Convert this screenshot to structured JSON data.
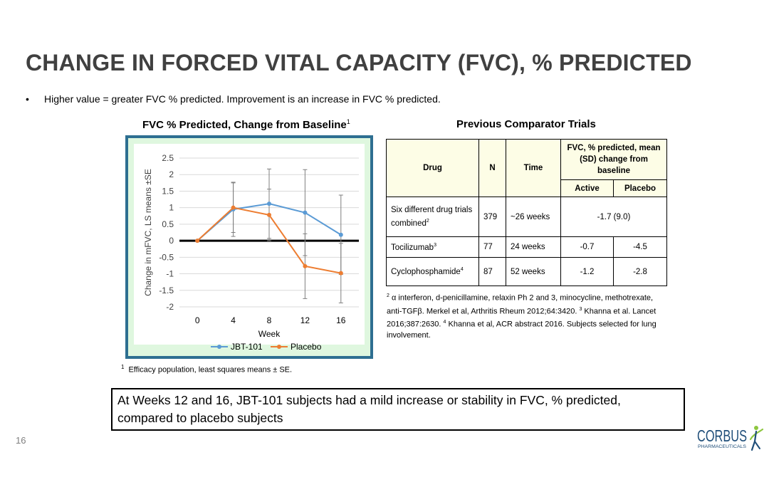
{
  "slide": {
    "title": "CHANGE IN FORCED VITAL CAPACITY (FVC), % PREDICTED",
    "bullet": "Higher value = greater FVC % predicted. Improvement is an increase in FVC % predicted.",
    "bullet_symbol": "•",
    "page_number": "16",
    "callout": "At Weeks 12 and 16, JBT-101 subjects had a mild increase or stability in FVC, % predicted, compared to placebo subjects"
  },
  "chart_panel": {
    "title": "FVC % Predicted, Change from Baseline",
    "title_sup": "1",
    "footnote_sup": "1",
    "footnote": "Efficacy population, least squares means ± SE."
  },
  "chart_data": {
    "type": "line",
    "title": "FVC % Predicted, Change from Baseline",
    "xlabel": "Week",
    "ylabel": "Change in mFVC, LS means ±SE",
    "x": [
      0,
      4,
      8,
      12,
      16
    ],
    "x_tick_labels": [
      "0",
      "4",
      "8",
      "12",
      "16"
    ],
    "y_tick_labels": [
      "2.5",
      "2",
      "1.5",
      "1",
      "0.5",
      "0",
      "-0.5",
      "-1",
      "-1.5",
      "-2"
    ],
    "ylim": [
      -2,
      2.5
    ],
    "grid": true,
    "legend_position": "bottom",
    "series": [
      {
        "name": "JBT-101",
        "color": "#5b9bd5",
        "values": [
          0,
          0.95,
          1.12,
          0.85,
          0.18
        ],
        "err": [
          0,
          0.82,
          1.05,
          1.3,
          1.2
        ]
      },
      {
        "name": "Placebo",
        "color": "#ed7d31",
        "values": [
          0,
          1.0,
          0.78,
          -0.77,
          -0.98
        ],
        "err": [
          0,
          0.75,
          0.78,
          0.98,
          0.9
        ]
      }
    ]
  },
  "comparator": {
    "title": "Previous Comparator Trials",
    "headers": {
      "drug": "Drug",
      "n": "N",
      "time": "Time",
      "fvc": "FVC, % predicted, mean (SD) change from baseline",
      "active": "Active",
      "placebo": "Placebo"
    },
    "rows": [
      {
        "drug": "Six different drug trials combined",
        "sup": "2",
        "n": "379",
        "time": "~26 weeks",
        "combined": "-1.7 (9.0)"
      },
      {
        "drug": "Tocilizumab",
        "sup": "3",
        "n": "77",
        "time": "24 weeks",
        "active": "-0.7",
        "placebo": "-4.5"
      },
      {
        "drug": "Cyclophosphamide",
        "sup": "4",
        "n": "87",
        "time": "52 weeks",
        "active": "-1.2",
        "placebo": "-2.8"
      }
    ],
    "references": [
      {
        "sup": "2",
        "text": " α interferon, d-penicillamine, relaxin Ph 2 and 3, minocycline, methotrexate, anti-TGFβ.  Merkel et al, Arthritis Rheum 2012;64:3420. "
      },
      {
        "sup": "3",
        "text": " Khanna et al. Lancet 2016;387:2630. "
      },
      {
        "sup": "4",
        "text": " Khanna et al,  ACR abstract 2016. Subjects selected for lung involvement."
      }
    ]
  },
  "logo": {
    "wordmark": "CORBUS",
    "subtext": "PHARMACEUTICALS",
    "colors": {
      "navy": "#1f4e79",
      "green": "#8dc63f"
    }
  }
}
